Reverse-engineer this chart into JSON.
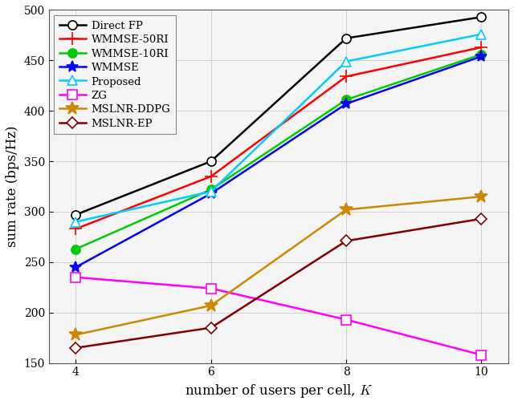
{
  "x": [
    4,
    6,
    8,
    10
  ],
  "series": {
    "Direct FP": {
      "y": [
        297,
        350,
        472,
        493
      ],
      "color": "#000000",
      "marker": "o",
      "mfc": "white",
      "mec": "#000000"
    },
    "WMMSE-50RI": {
      "y": [
        283,
        335,
        434,
        463
      ],
      "color": "#ff0000",
      "marker": "+",
      "mfc": "#ff0000",
      "mec": "#ff0000"
    },
    "WMMSE-10RI": {
      "y": [
        263,
        322,
        411,
        456
      ],
      "color": "#00cc00",
      "marker": "o",
      "mfc": "#00cc00",
      "mec": "#00cc00"
    },
    "WMMSE": {
      "y": [
        245,
        318,
        407,
        454
      ],
      "color": "#0000ff",
      "marker": "*",
      "mfc": "#0000ff",
      "mec": "#0000ff"
    },
    "Proposed": {
      "y": [
        290,
        320,
        449,
        476
      ],
      "color": "#00ccff",
      "marker": "^",
      "mfc": "white",
      "mec": "#00ccff"
    },
    "ZG": {
      "y": [
        235,
        224,
        193,
        158
      ],
      "color": "#ff00ff",
      "marker": "s",
      "mfc": "white",
      "mec": "#ff00ff"
    },
    "MSLNR-DDPG": {
      "y": [
        178,
        207,
        302,
        315
      ],
      "color": "#cc8800",
      "marker": "*",
      "mfc": "#cc8800",
      "mec": "#cc8800"
    },
    "MSLNR-EP": {
      "y": [
        165,
        185,
        271,
        293
      ],
      "color": "#800000",
      "marker": "D",
      "mfc": "white",
      "mec": "#800000"
    }
  },
  "xlabel": "number of users per cell, $K$",
  "ylabel": "sum rate (bps/Hz)",
  "ylim": [
    150,
    500
  ],
  "xlim": [
    3.6,
    10.4
  ],
  "yticks": [
    150,
    200,
    250,
    300,
    350,
    400,
    450,
    500
  ],
  "xticks": [
    4,
    6,
    8,
    10
  ],
  "figsize": [
    6.4,
    5.05
  ],
  "dpi": 100,
  "bg_color": "#f0f0f0",
  "plot_bg": "#f5f5f5"
}
